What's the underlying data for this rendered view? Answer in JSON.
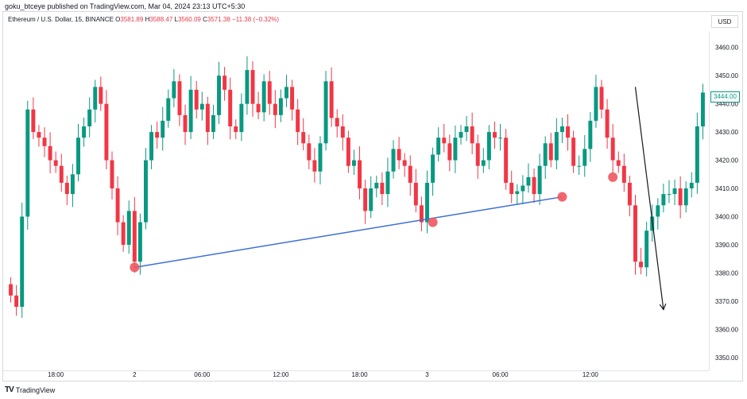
{
  "header": {
    "published_by": "goku_btceye published on TradingView.com, Mar 04, 2024 23:13 UTC+5:30",
    "currency": "USD",
    "symbol_title": "Ethereum / U.S. Dollar, 15, BINANCE",
    "open_label": "O",
    "open_value": "3581.89",
    "high_label": "H",
    "high_value": "3588.47",
    "low_label": "L",
    "low_value": "3560.09",
    "close_label": "C",
    "close_value": "3571.38",
    "change_value": "−11.38 (−0.32%)"
  },
  "footer": {
    "logo_text": "TradingView"
  },
  "colors": {
    "up": "#089981",
    "down": "#f23645",
    "trendline": "#3d6fd6",
    "marker": "#f0575f",
    "arrow": "#131722"
  },
  "chart_data": {
    "type": "candlestick",
    "y_ticks": [
      "3460.00",
      "3450.00",
      "3440.00",
      "3430.00",
      "3420.00",
      "3410.00",
      "3400.00",
      "3390.00",
      "3380.00",
      "3370.00",
      "3360.00",
      "3350.00"
    ],
    "ylim": [
      3346,
      3465
    ],
    "x_ticks": [
      "18:00",
      "2",
      "06:00",
      "12:00",
      "18:00",
      "3",
      "06:00",
      "12:00"
    ],
    "last_price": "3444.00",
    "close_series": [
      3372,
      3368,
      3400,
      3438,
      3430,
      3428,
      3425,
      3420,
      3418,
      3412,
      3408,
      3415,
      3428,
      3432,
      3438,
      3446,
      3440,
      3420,
      3410,
      3398,
      3390,
      3402,
      3384,
      3398,
      3420,
      3430,
      3428,
      3434,
      3442,
      3448,
      3436,
      3430,
      3445,
      3438,
      3440,
      3430,
      3436,
      3450,
      3445,
      3432,
      3430,
      3440,
      3452,
      3440,
      3437,
      3448,
      3440,
      3436,
      3442,
      3446,
      3438,
      3430,
      3426,
      3420,
      3416,
      3426,
      3448,
      3435,
      3432,
      3428,
      3418,
      3420,
      3410,
      3402,
      3410,
      3412,
      3408,
      3416,
      3424,
      3420,
      3418,
      3412,
      3404,
      3398,
      3412,
      3422,
      3428,
      3426,
      3420,
      3428,
      3430,
      3432,
      3426,
      3418,
      3420,
      3430,
      3428,
      3428,
      3412,
      3408,
      3409,
      3411,
      3414,
      3408,
      3418,
      3426,
      3420,
      3430,
      3432,
      3428,
      3418,
      3418,
      3424,
      3434,
      3446,
      3438,
      3428,
      3420,
      3418,
      3412,
      3404,
      3384,
      3382,
      3395,
      3400,
      3404,
      3408,
      3408,
      3410,
      3404,
      3410,
      3412,
      3432,
      3444
    ],
    "annotations": {
      "trendline_points": [
        {
          "x_index": 22,
          "y": 3382
        },
        {
          "x_index": 98,
          "y": 3407
        }
      ],
      "markers": [
        {
          "x_index": 22,
          "y": 3382
        },
        {
          "x_index": 75,
          "y": 3398
        },
        {
          "x_index": 98,
          "y": 3407
        },
        {
          "x_index": 107,
          "y": 3414
        }
      ],
      "arrow": {
        "from_index": 111,
        "from_y": 3446,
        "to_index": 116,
        "to_y": 3367
      }
    }
  }
}
